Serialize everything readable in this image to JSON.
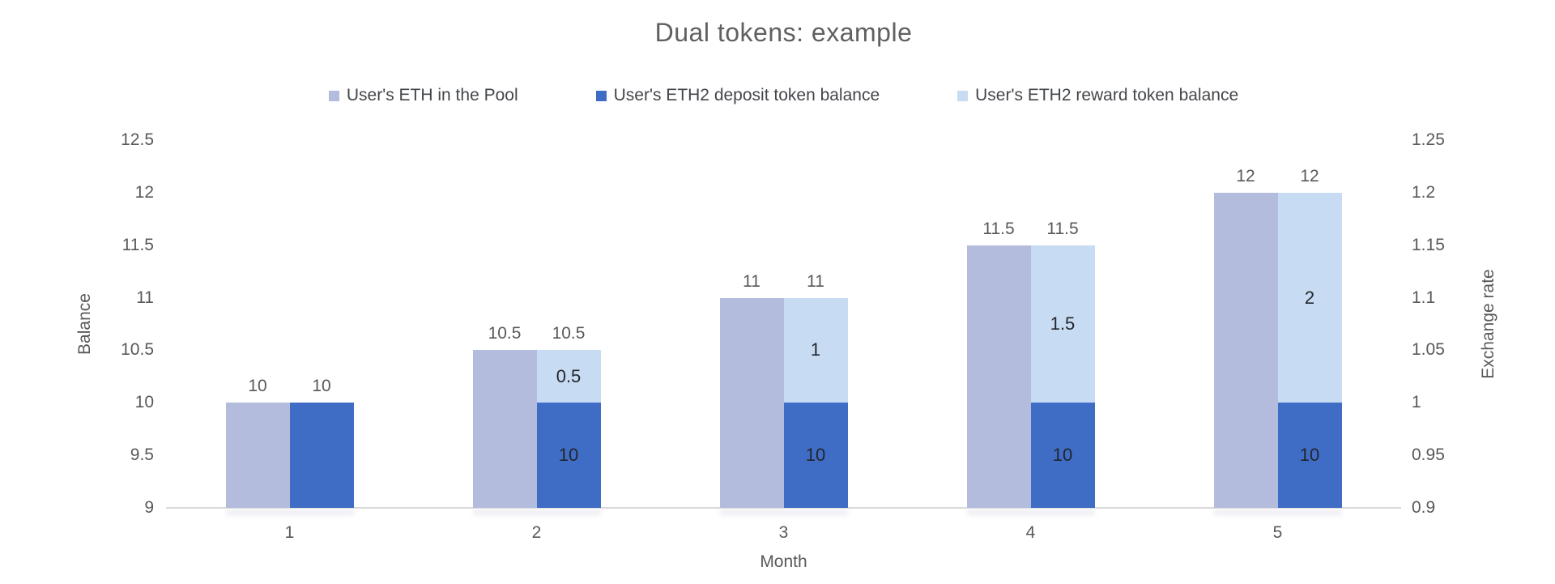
{
  "chart_data": {
    "type": "bar",
    "title": "Dual tokens: example",
    "xlabel": "Month",
    "categories": [
      "1",
      "2",
      "3",
      "4",
      "5"
    ],
    "left_axis": {
      "label": "Balance",
      "min": 9,
      "max": 12.5,
      "step": 0.5,
      "ticks": [
        "12.5",
        "12",
        "11.5",
        "11",
        "10.5",
        "10",
        "9.5",
        "9"
      ]
    },
    "right_axis": {
      "label": "Exchange rate",
      "min": 0.9,
      "max": 1.25,
      "step": 0.05,
      "ticks": [
        "1.25",
        "1.2",
        "1.15",
        "1.1",
        "1.05",
        "1",
        "0.95",
        "0.9"
      ]
    },
    "series": [
      {
        "name": "User's ETH in the Pool",
        "color": "#b3bcdc",
        "role": "grouped-bar",
        "values": [
          10,
          10.5,
          11,
          11.5,
          12
        ]
      },
      {
        "name": "User's ETH2 deposit token balance",
        "color": "#3f6cc5",
        "role": "stack-bottom",
        "values": [
          10,
          10,
          10,
          10,
          10
        ]
      },
      {
        "name": "User's ETH2 reward token balance",
        "color": "#c7dcf2",
        "role": "stack-top",
        "values": [
          0,
          0.5,
          1,
          1.5,
          2
        ]
      }
    ],
    "bar_top_labels": {
      "pool": [
        "10",
        "10.5",
        "11",
        "11.5",
        "12"
      ],
      "stack": [
        "10",
        "10.5",
        "11",
        "11.5",
        "12"
      ]
    },
    "inside_labels": {
      "deposit": [
        "",
        "10",
        "10",
        "10",
        "10"
      ],
      "reward": [
        "",
        "0.5",
        "1",
        "1.5",
        "2"
      ]
    },
    "legend_position": "top",
    "gridlines": false,
    "colors": {
      "title_text": "#606060",
      "tick_text": "#595959",
      "legend_text": "#43464b",
      "inside_label_text": "#23262c",
      "axis_line": "#d9d9d9",
      "background": "#ffffff"
    }
  }
}
